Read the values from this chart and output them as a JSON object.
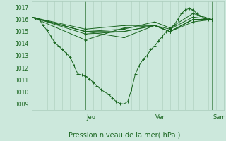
{
  "ylim": [
    1008.5,
    1017.5
  ],
  "xlim": [
    0,
    100
  ],
  "yticks": [
    1009,
    1010,
    1011,
    1012,
    1013,
    1014,
    1015,
    1016,
    1017
  ],
  "day_ticks": [
    [
      28,
      "Jeu"
    ],
    [
      64,
      "Ven"
    ],
    [
      94,
      "Sam"
    ]
  ],
  "bg_color": "#cce8dc",
  "grid_color": "#aaccbb",
  "line_color": "#1a6620",
  "xlabel": "Pression niveau de la mer( hPa )",
  "lines": [
    {
      "x": [
        0,
        2,
        4,
        6,
        8,
        10,
        12,
        14,
        16,
        18,
        20,
        22,
        24,
        26,
        28,
        30,
        32,
        34,
        36,
        38,
        40,
        42,
        44,
        46,
        48,
        50,
        52,
        54,
        56,
        58,
        60,
        62,
        64,
        66,
        68,
        70,
        72,
        74,
        76,
        78,
        80,
        82,
        84,
        86,
        88,
        90,
        92,
        94
      ],
      "y": [
        1016.2,
        1016.1,
        1016.0,
        1015.5,
        1015.1,
        1014.6,
        1014.1,
        1013.8,
        1013.5,
        1013.2,
        1012.9,
        1012.2,
        1011.5,
        1011.4,
        1011.3,
        1011.1,
        1010.8,
        1010.5,
        1010.2,
        1010.0,
        1009.8,
        1009.5,
        1009.2,
        1009.05,
        1009.0,
        1009.2,
        1010.2,
        1011.5,
        1012.2,
        1012.7,
        1013.0,
        1013.5,
        1013.8,
        1014.2,
        1014.6,
        1015.0,
        1015.2,
        1015.5,
        1016.0,
        1016.5,
        1016.8,
        1016.9,
        1016.8,
        1016.5,
        1016.3,
        1016.1,
        1016.0,
        1016.0
      ]
    },
    {
      "x": [
        0,
        28,
        48,
        64,
        72,
        84,
        94
      ],
      "y": [
        1016.2,
        1015.0,
        1014.5,
        1015.5,
        1015.0,
        1016.0,
        1016.0
      ]
    },
    {
      "x": [
        0,
        28,
        48,
        64,
        72,
        84,
        94
      ],
      "y": [
        1016.2,
        1015.0,
        1015.2,
        1015.8,
        1015.3,
        1016.5,
        1016.0
      ]
    },
    {
      "x": [
        0,
        28,
        48,
        64,
        72,
        84,
        94
      ],
      "y": [
        1016.2,
        1014.8,
        1015.0,
        1015.5,
        1015.2,
        1016.2,
        1016.0
      ]
    },
    {
      "x": [
        0,
        28,
        48,
        64,
        72,
        84,
        94
      ],
      "y": [
        1016.2,
        1014.3,
        1015.3,
        1015.5,
        1015.0,
        1016.0,
        1016.0
      ]
    },
    {
      "x": [
        0,
        28,
        48,
        64,
        72,
        84,
        94
      ],
      "y": [
        1016.2,
        1015.2,
        1015.5,
        1015.5,
        1015.0,
        1016.0,
        1016.0
      ]
    },
    {
      "x": [
        0,
        28,
        48,
        64,
        72,
        84,
        94
      ],
      "y": [
        1016.2,
        1015.0,
        1015.0,
        1015.5,
        1015.0,
        1015.8,
        1016.0
      ]
    }
  ]
}
